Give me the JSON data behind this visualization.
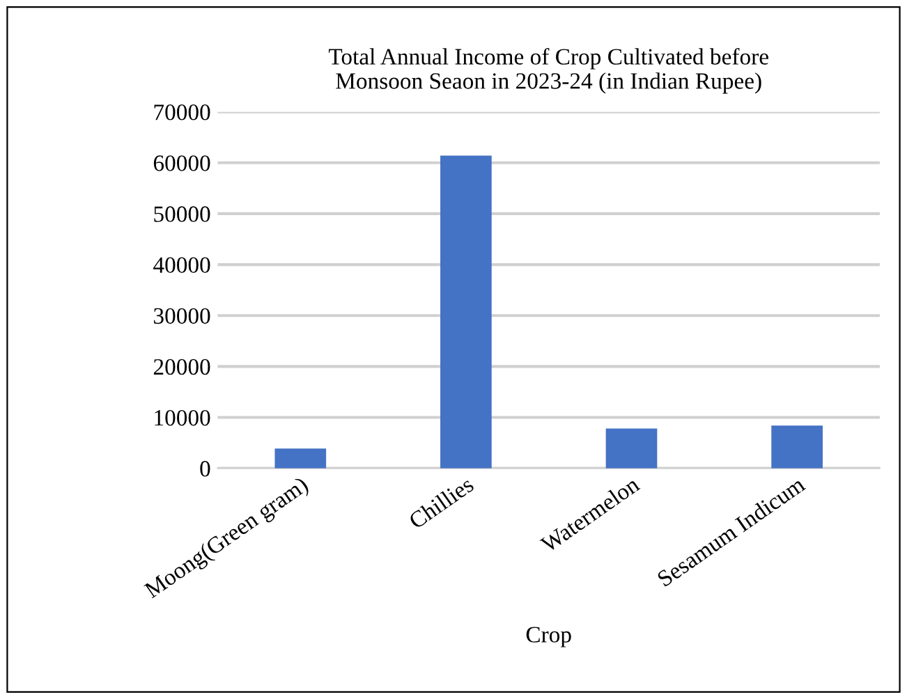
{
  "chart_data": {
    "type": "bar",
    "title": "Total Annual Income of Crop Cultivated before\nMonsoon Seaon in 2023-24 (in Indian Rupee)",
    "xlabel": "Crop",
    "categories": [
      "Moong(Green gram)",
      "Chillies",
      "Watermelon",
      "Sesamum Indicum"
    ],
    "values": [
      3900,
      61400,
      7800,
      8400
    ],
    "color": "#4472c4",
    "ylim": [
      0,
      70000
    ],
    "yticks": [
      0,
      10000,
      20000,
      30000,
      40000,
      50000,
      60000,
      70000
    ],
    "grid": "y"
  }
}
